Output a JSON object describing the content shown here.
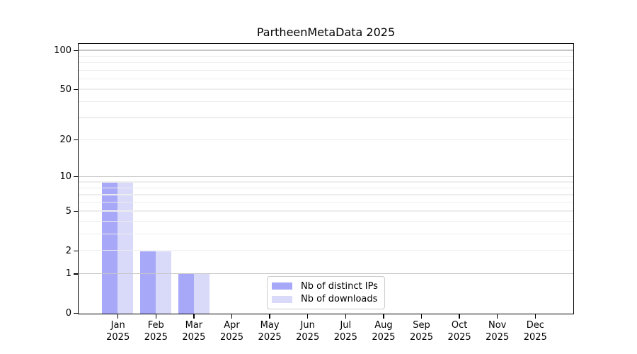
{
  "figure": {
    "title": "PartheenMetaData 2025",
    "background_color": "#ffffff"
  },
  "chart_data": {
    "type": "bar",
    "title": "PartheenMetaData 2025",
    "x_tick_months": [
      "Jan",
      "Feb",
      "Mar",
      "Apr",
      "May",
      "Jun",
      "Jul",
      "Aug",
      "Sep",
      "Oct",
      "Nov",
      "Dec"
    ],
    "x_tick_year": "2025",
    "series": [
      {
        "name": "Nb of distinct IPs",
        "color": "#a8a8f8",
        "values": [
          9,
          2,
          1,
          0,
          0,
          0,
          0,
          0,
          0,
          0,
          0,
          0
        ]
      },
      {
        "name": "Nb of downloads",
        "color": "#d9d9fa",
        "values": [
          9,
          2,
          1,
          0,
          0,
          0,
          0,
          0,
          0,
          0,
          0,
          0
        ]
      }
    ],
    "y_ticks": [
      0,
      1,
      2,
      5,
      10,
      20,
      50,
      100
    ],
    "y_scale": "log10(1+y)",
    "y_axis_top_value": 112,
    "y_axis_bottom_value": 0,
    "grid_minor_values": [
      2,
      3,
      4,
      5,
      6,
      7,
      8,
      9,
      20,
      30,
      40,
      50,
      60,
      70,
      80,
      90
    ],
    "grid_major_values": [
      1,
      10,
      100
    ],
    "grid_minor_color": "#ededed",
    "grid_major_color": "#c6c6c6",
    "axis_color": "#000000",
    "legend_position": "bottom-center",
    "grid_on": true,
    "xlabel": "",
    "ylabel": ""
  }
}
